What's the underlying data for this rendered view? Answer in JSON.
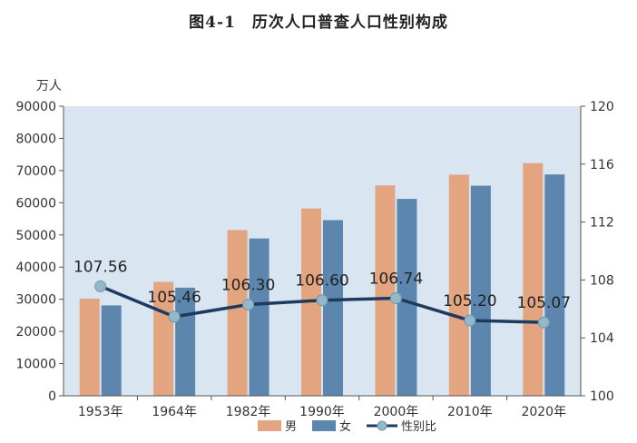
{
  "title": "图4-1　历次人口普查人口性别构成",
  "left_axis_unit": "万人",
  "chart_data": {
    "type": "bar",
    "categories": [
      "1953年",
      "1964年",
      "1982年",
      "1990年",
      "2000年",
      "2010年",
      "2020年"
    ],
    "series": [
      {
        "name": "男",
        "type": "bar",
        "axis": "left",
        "color": "#E3A57F",
        "values": [
          30200,
          35400,
          51500,
          58200,
          65400,
          68700,
          72300
        ]
      },
      {
        "name": "女",
        "type": "bar",
        "axis": "left",
        "color": "#5C86AD",
        "values": [
          28100,
          33600,
          48900,
          54600,
          61200,
          65300,
          68800
        ]
      },
      {
        "name": "性别比",
        "type": "line",
        "axis": "right",
        "color": "#1F3A5F",
        "marker_color": "#93B8C8",
        "values": [
          107.56,
          105.46,
          106.3,
          106.6,
          106.74,
          105.2,
          105.07
        ]
      }
    ],
    "data_labels": [
      "107.56",
      "105.46",
      "106.30",
      "106.60",
      "106.74",
      "105.20",
      "105.07"
    ],
    "left_axis": {
      "ylim": [
        0,
        90000
      ],
      "ticks": [
        "0",
        "10000",
        "20000",
        "30000",
        "40000",
        "50000",
        "60000",
        "70000",
        "80000",
        "90000"
      ]
    },
    "right_axis": {
      "ylim": [
        100,
        120
      ],
      "ticks": [
        "100",
        "104",
        "108",
        "112",
        "116",
        "120"
      ]
    },
    "legend": [
      "男",
      "女",
      "性别比"
    ],
    "legend_position": "bottom",
    "plot_background": "#D9E6F2",
    "grid": false
  }
}
